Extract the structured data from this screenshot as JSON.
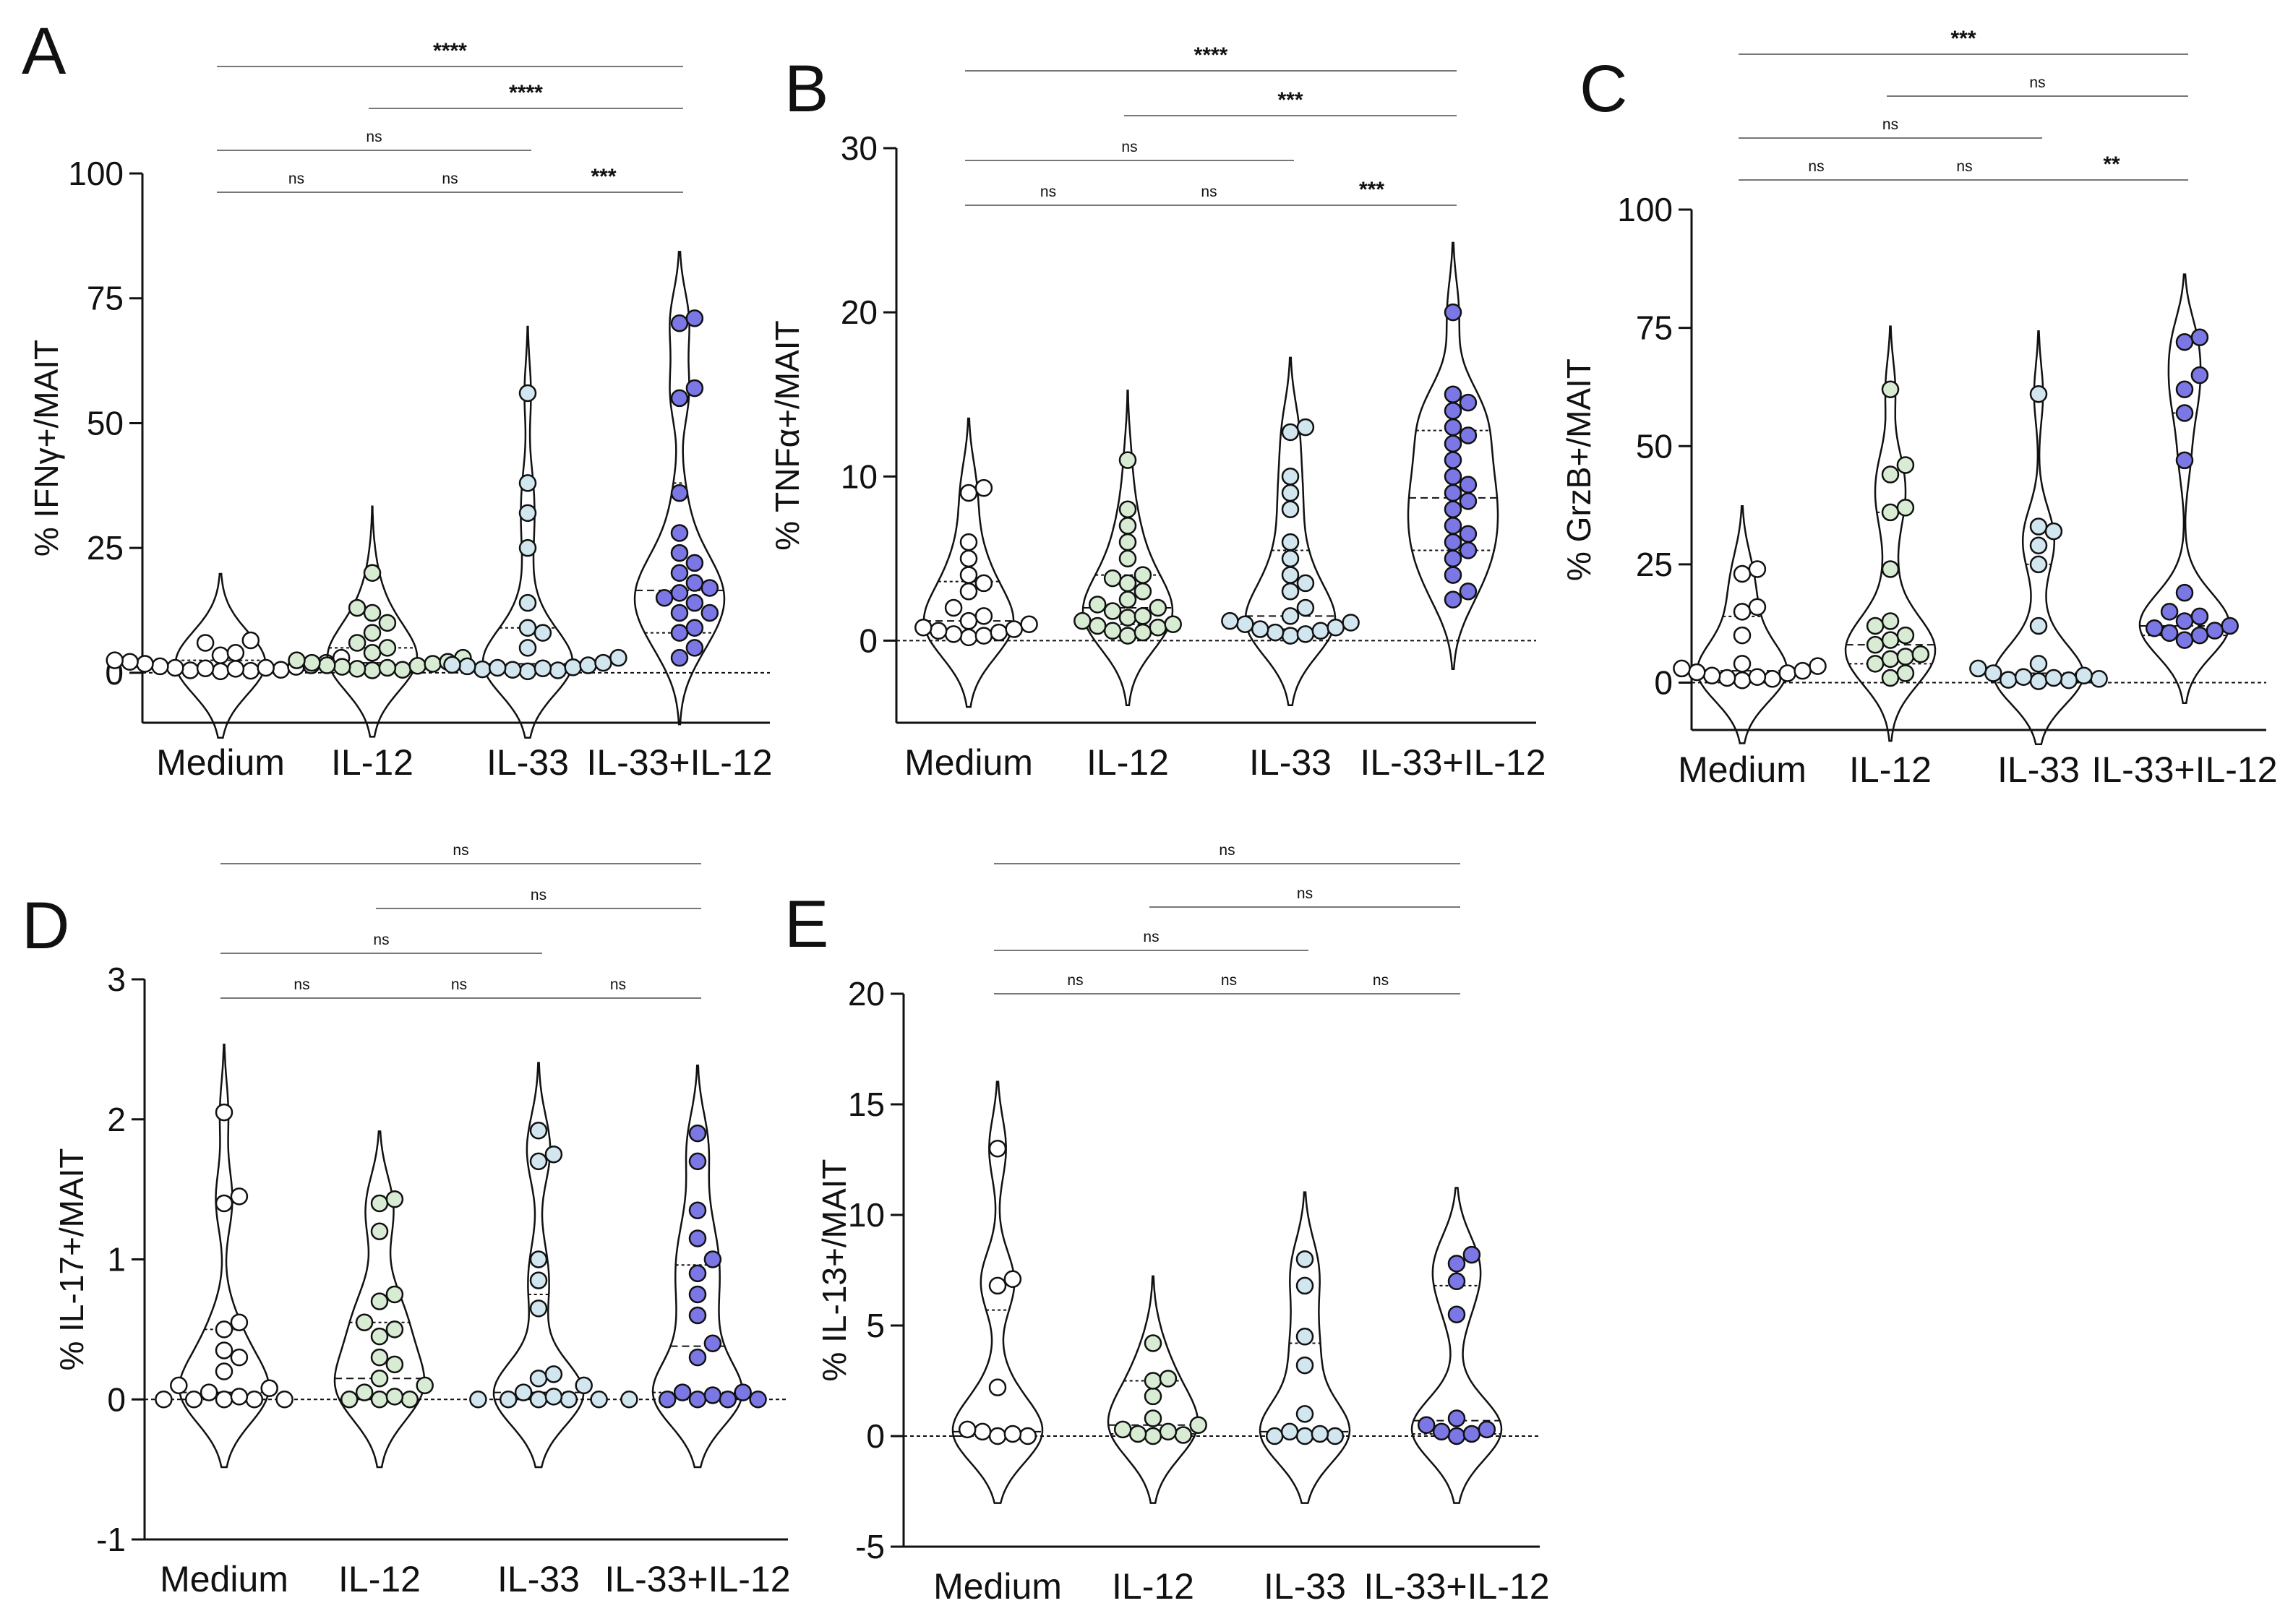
{
  "figure": {
    "colors": {
      "Medium": "#ffffff",
      "IL-12": "#d8ecd4",
      "IL-33": "#d2e6ef",
      "IL-33+IL-12": "#7b78e6"
    }
  },
  "chart_data": [
    {
      "panel": "A",
      "type": "violin",
      "ylabel": "% IFNγ+/MAIT",
      "ylim": [
        -10,
        100
      ],
      "yticks": [
        0,
        25,
        50,
        75,
        100
      ],
      "categories": [
        "Medium",
        "IL-12",
        "IL-33",
        "IL-33+IL-12"
      ],
      "series": [
        {
          "name": "Medium",
          "values": [
            0.5,
            0.8,
            1,
            1.2,
            1.5,
            2,
            2.5,
            3,
            3.5,
            4,
            6,
            6.5,
            0.3,
            0.6,
            1,
            1.8,
            2.2,
            0.9,
            1.3,
            0.4
          ]
        },
        {
          "name": "IL-12",
          "values": [
            0.5,
            1,
            1.5,
            2,
            2.5,
            3,
            4,
            5,
            6,
            8,
            10,
            12,
            13,
            20,
            0.8,
            1.2,
            1.8,
            2.2,
            0.6,
            1.4
          ]
        },
        {
          "name": "IL-33",
          "values": [
            0.5,
            0.7,
            1,
            1.5,
            2,
            3,
            5,
            8,
            9,
            14,
            25,
            32,
            38,
            56,
            0.3,
            0.6,
            1.1,
            1.6,
            0.9,
            1.3
          ]
        },
        {
          "name": "IL-33+IL-12",
          "values": [
            3,
            5,
            8,
            9,
            12,
            14,
            16,
            17,
            20,
            24,
            28,
            36,
            55,
            57,
            70,
            71,
            12,
            15,
            18,
            22
          ]
        }
      ],
      "quartiles": [
        [
          0.6,
          1.2,
          2.5
        ],
        [
          1,
          2,
          5
        ],
        [
          0.8,
          1.8,
          9
        ],
        [
          8,
          16.5,
          38
        ]
      ],
      "comparisons": [
        {
          "from": "Medium",
          "to": "IL-33+IL-12",
          "label": "****"
        },
        {
          "from": "IL-12",
          "to": "IL-33+IL-12",
          "label": "****"
        },
        {
          "from": "Medium",
          "to": "IL-33",
          "label": "ns"
        },
        {
          "from": "Medium",
          "to": "IL-12",
          "label": "ns"
        },
        {
          "from": "IL-12",
          "to": "IL-33",
          "label": "ns"
        },
        {
          "from": "IL-33",
          "to": "IL-33+IL-12",
          "label": "***"
        }
      ]
    },
    {
      "panel": "B",
      "type": "violin",
      "ylabel": "% TNFα+/MAIT",
      "ylim": [
        -5,
        30
      ],
      "yticks": [
        0,
        10,
        20,
        30
      ],
      "categories": [
        "Medium",
        "IL-12",
        "IL-33",
        "IL-33+IL-12"
      ],
      "series": [
        {
          "name": "Medium",
          "values": [
            0.2,
            0.4,
            0.5,
            0.6,
            0.8,
            1,
            1.5,
            2,
            3,
            3.5,
            4,
            5,
            6,
            9,
            9.3,
            0.3,
            0.7,
            1.2
          ]
        },
        {
          "name": "IL-12",
          "values": [
            0.5,
            0.8,
            1,
            1.2,
            1.5,
            2,
            2.5,
            3,
            3.5,
            4,
            5,
            6,
            7,
            8,
            11,
            0.6,
            1.8,
            2.2,
            3.8,
            0.9,
            1.4,
            0.3
          ]
        },
        {
          "name": "IL-33",
          "values": [
            0.3,
            0.5,
            0.7,
            1,
            1.2,
            1.5,
            2,
            3,
            3.5,
            4,
            5,
            6,
            8,
            9,
            10,
            12.7,
            13,
            0.4,
            0.8,
            1.1,
            0.6
          ]
        },
        {
          "name": "IL-33+IL-12",
          "values": [
            2.5,
            3,
            4,
            5,
            5.5,
            6,
            7,
            8,
            8.5,
            9,
            10,
            11,
            12,
            12.5,
            13,
            14,
            14.5,
            15,
            20,
            6.5,
            9.5
          ]
        }
      ],
      "quartiles": [
        [
          0.5,
          1.2,
          3.6
        ],
        [
          1,
          2,
          4
        ],
        [
          0.7,
          1.5,
          5.5
        ],
        [
          5.5,
          8.7,
          12.8
        ]
      ],
      "comparisons": [
        {
          "from": "Medium",
          "to": "IL-33+IL-12",
          "label": "****"
        },
        {
          "from": "IL-12",
          "to": "IL-33+IL-12",
          "label": "***"
        },
        {
          "from": "Medium",
          "to": "IL-33",
          "label": "ns"
        },
        {
          "from": "Medium",
          "to": "IL-12",
          "label": "ns"
        },
        {
          "from": "IL-12",
          "to": "IL-33",
          "label": "ns"
        },
        {
          "from": "IL-33",
          "to": "IL-33+IL-12",
          "label": "***"
        }
      ]
    },
    {
      "panel": "C",
      "type": "violin",
      "ylabel": "% GrzB+/MAIT",
      "ylim": [
        -10,
        100
      ],
      "yticks": [
        0,
        25,
        50,
        75,
        100
      ],
      "categories": [
        "Medium",
        "IL-12",
        "IL-33",
        "IL-33+IL-12"
      ],
      "series": [
        {
          "name": "Medium",
          "values": [
            0.5,
            1,
            1.5,
            2,
            2.5,
            3,
            4,
            10,
            15,
            16,
            23,
            24,
            0.8,
            1.2,
            2.2,
            3.5
          ]
        },
        {
          "name": "IL-12",
          "values": [
            2,
            4,
            5,
            6,
            8,
            9,
            10,
            12,
            13,
            24,
            36,
            37,
            44,
            46,
            62,
            1,
            5.5
          ]
        },
        {
          "name": "IL-33",
          "values": [
            0.5,
            0.8,
            1,
            1.5,
            2,
            3,
            4,
            12,
            25,
            29,
            32,
            33,
            61,
            0.3,
            1.2,
            0.6
          ]
        },
        {
          "name": "IL-33+IL-12",
          "values": [
            9,
            10,
            11,
            12,
            13,
            14,
            15,
            19,
            47,
            57,
            62,
            65,
            72,
            73,
            10.5,
            11.5
          ]
        }
      ],
      "quartiles": [
        [
          1,
          2.5,
          14
        ],
        [
          4,
          8,
          36
        ],
        [
          0.8,
          2,
          25
        ],
        [
          10,
          12,
          57
        ]
      ],
      "comparisons": [
        {
          "from": "Medium",
          "to": "IL-33+IL-12",
          "label": "***"
        },
        {
          "from": "IL-12",
          "to": "IL-33+IL-12",
          "label": "ns"
        },
        {
          "from": "Medium",
          "to": "IL-33",
          "label": "ns"
        },
        {
          "from": "Medium",
          "to": "IL-12",
          "label": "ns"
        },
        {
          "from": "IL-12",
          "to": "IL-33",
          "label": "ns"
        },
        {
          "from": "IL-33",
          "to": "IL-33+IL-12",
          "label": "**"
        }
      ]
    },
    {
      "panel": "D",
      "type": "violin",
      "ylabel": "% IL-17+/MAIT",
      "ylim": [
        -1,
        3
      ],
      "yticks": [
        -1,
        0,
        1,
        2,
        3
      ],
      "categories": [
        "Medium",
        "IL-12",
        "IL-33",
        "IL-33+IL-12"
      ],
      "series": [
        {
          "name": "Medium",
          "values": [
            0,
            0,
            0,
            0,
            0,
            0.02,
            0.05,
            0.08,
            0.1,
            0.2,
            0.3,
            0.35,
            0.5,
            0.55,
            1.4,
            1.45,
            2.05
          ]
        },
        {
          "name": "IL-12",
          "values": [
            0,
            0,
            0,
            0.02,
            0.05,
            0.1,
            0.15,
            0.25,
            0.3,
            0.45,
            0.5,
            0.55,
            0.7,
            0.75,
            1.2,
            1.4,
            1.43
          ]
        },
        {
          "name": "IL-33",
          "values": [
            0,
            0,
            0,
            0,
            0,
            0,
            0.02,
            0.05,
            0.1,
            0.15,
            0.18,
            0.65,
            0.85,
            1,
            1.7,
            1.75,
            1.92
          ]
        },
        {
          "name": "IL-33+IL-12",
          "values": [
            0,
            0,
            0,
            0,
            0.03,
            0.05,
            0.05,
            0.3,
            0.4,
            0.6,
            0.75,
            0.9,
            1,
            1.15,
            1.35,
            1.7,
            1.9
          ]
        }
      ],
      "quartiles": [
        [
          0,
          0.05,
          0.5
        ],
        [
          0,
          0.15,
          0.55
        ],
        [
          0,
          0.05,
          0.75
        ],
        [
          0.05,
          0.38,
          0.96
        ]
      ],
      "comparisons": [
        {
          "from": "Medium",
          "to": "IL-33+IL-12",
          "label": "ns"
        },
        {
          "from": "IL-12",
          "to": "IL-33+IL-12",
          "label": "ns"
        },
        {
          "from": "Medium",
          "to": "IL-33",
          "label": "ns"
        },
        {
          "from": "Medium",
          "to": "IL-12",
          "label": "ns"
        },
        {
          "from": "IL-12",
          "to": "IL-33",
          "label": "ns"
        },
        {
          "from": "IL-33",
          "to": "IL-33+IL-12",
          "label": "ns"
        }
      ]
    },
    {
      "panel": "E",
      "type": "violin",
      "ylabel": "% IL-13+/MAIT",
      "ylim": [
        -5,
        20
      ],
      "yticks": [
        -5,
        0,
        5,
        10,
        15,
        20
      ],
      "categories": [
        "Medium",
        "IL-12",
        "IL-33",
        "IL-33+IL-12"
      ],
      "series": [
        {
          "name": "Medium",
          "values": [
            0,
            0,
            0.1,
            0.2,
            0.3,
            2.2,
            6.8,
            7.1,
            13
          ]
        },
        {
          "name": "IL-12",
          "values": [
            0,
            0.1,
            0.2,
            0.3,
            0.5,
            0.8,
            1.8,
            2.5,
            2.6,
            4.2,
            0.05
          ]
        },
        {
          "name": "IL-33",
          "values": [
            0,
            0,
            0,
            0.1,
            0.2,
            1,
            3.2,
            4.5,
            6.8,
            8
          ]
        },
        {
          "name": "IL-33+IL-12",
          "values": [
            0,
            0.1,
            0.3,
            0.5,
            0.8,
            5.5,
            7,
            7.8,
            8.2,
            0.2
          ]
        }
      ],
      "quartiles": [
        [
          0,
          0.2,
          5.7
        ],
        [
          0.1,
          0.5,
          2.5
        ],
        [
          0,
          0.2,
          4.2
        ],
        [
          0.1,
          0.7,
          6.8
        ]
      ],
      "comparisons": [
        {
          "from": "Medium",
          "to": "IL-33+IL-12",
          "label": "ns"
        },
        {
          "from": "IL-12",
          "to": "IL-33+IL-12",
          "label": "ns"
        },
        {
          "from": "Medium",
          "to": "IL-33",
          "label": "ns"
        },
        {
          "from": "Medium",
          "to": "IL-12",
          "label": "ns"
        },
        {
          "from": "IL-12",
          "to": "IL-33",
          "label": "ns"
        },
        {
          "from": "IL-33",
          "to": "IL-33+IL-12",
          "label": "ns"
        }
      ]
    }
  ]
}
